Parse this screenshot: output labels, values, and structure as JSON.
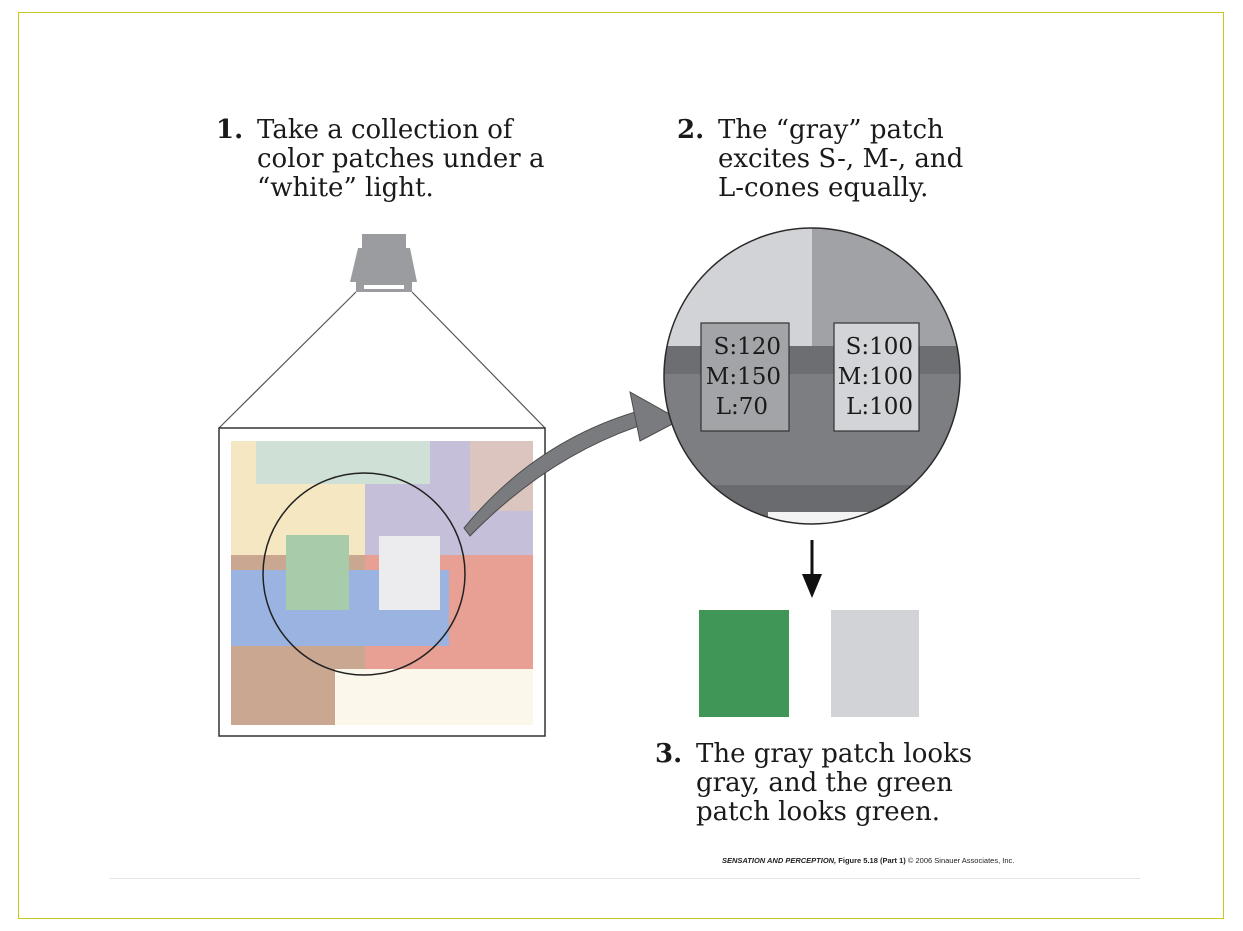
{
  "step1": {
    "number": "1.",
    "lines": [
      "Take a collection of",
      "color patches under a",
      "“white” light."
    ]
  },
  "step2": {
    "number": "2.",
    "lines": [
      "The “gray” patch",
      "excites S-, M-, and",
      "L-cones equally."
    ]
  },
  "step3": {
    "number": "3.",
    "lines": [
      "The gray patch looks",
      "gray, and the green",
      "patch looks green."
    ]
  },
  "green_patch_cones": {
    "s": "S:120",
    "m": "M:150",
    "l": "L:70"
  },
  "gray_patch_cones": {
    "s": "S:100",
    "m": "M:100",
    "l": "L:100"
  },
  "credit": {
    "title": "SENSATION AND PERCEPTION,",
    "figure": "Figure 5.18 (Part 1)",
    "copyright": "© 2006 Sinauer Associates, Inc."
  },
  "colors": {
    "green_result": "#3f9657",
    "gray_result": "#d2d3d6",
    "lamp": "#9b9ca0",
    "arrow": "#7a7b7e"
  }
}
